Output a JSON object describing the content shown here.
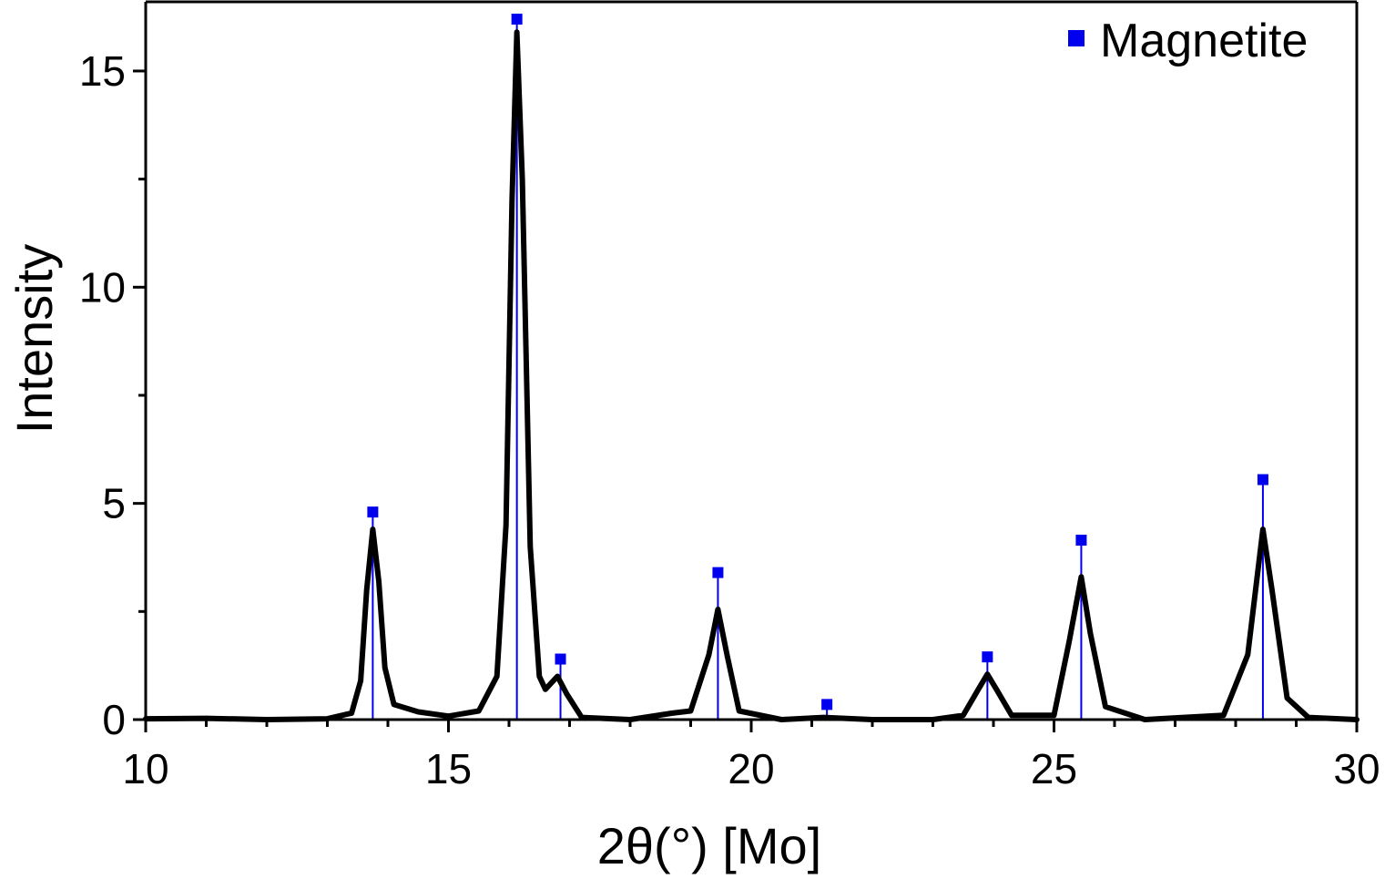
{
  "chart_data": {
    "type": "line",
    "xlabel": "2θ(°) [Mo]",
    "ylabel": "Intensity",
    "xlim": [
      10,
      30
    ],
    "ylim": [
      0,
      16.6
    ],
    "x_ticks": [
      "10",
      "15",
      "20",
      "25",
      "30"
    ],
    "y_ticks": [
      "0",
      "5",
      "10",
      "15"
    ],
    "grid": false,
    "legend_position": "top-right",
    "colors": {
      "pattern": "#000000",
      "reference": "#0000ee"
    },
    "series": [
      {
        "type": "line",
        "values": [
          [
            10.0,
            0.02
          ],
          [
            11.0,
            0.03
          ],
          [
            12.0,
            0.0
          ],
          [
            13.0,
            0.02
          ],
          [
            13.4,
            0.15
          ],
          [
            13.55,
            0.9
          ],
          [
            13.65,
            3.0
          ],
          [
            13.75,
            4.4
          ],
          [
            13.85,
            3.2
          ],
          [
            13.95,
            1.2
          ],
          [
            14.1,
            0.35
          ],
          [
            14.5,
            0.18
          ],
          [
            15.0,
            0.08
          ],
          [
            15.5,
            0.2
          ],
          [
            15.8,
            1.0
          ],
          [
            15.95,
            4.5
          ],
          [
            16.05,
            12.0
          ],
          [
            16.13,
            15.9
          ],
          [
            16.22,
            12.5
          ],
          [
            16.35,
            4.0
          ],
          [
            16.5,
            1.0
          ],
          [
            16.6,
            0.7
          ],
          [
            16.8,
            1.0
          ],
          [
            16.95,
            0.6
          ],
          [
            17.2,
            0.05
          ],
          [
            18.0,
            0.0
          ],
          [
            18.7,
            0.15
          ],
          [
            19.0,
            0.2
          ],
          [
            19.3,
            1.5
          ],
          [
            19.45,
            2.55
          ],
          [
            19.6,
            1.5
          ],
          [
            19.8,
            0.2
          ],
          [
            20.5,
            0.0
          ],
          [
            21.2,
            0.05
          ],
          [
            22.0,
            0.0
          ],
          [
            23.0,
            0.0
          ],
          [
            23.5,
            0.1
          ],
          [
            23.75,
            0.7
          ],
          [
            23.9,
            1.05
          ],
          [
            24.05,
            0.7
          ],
          [
            24.3,
            0.1
          ],
          [
            25.0,
            0.1
          ],
          [
            25.25,
            1.8
          ],
          [
            25.45,
            3.3
          ],
          [
            25.6,
            2.0
          ],
          [
            25.85,
            0.3
          ],
          [
            26.5,
            0.0
          ],
          [
            27.8,
            0.1
          ],
          [
            28.2,
            1.5
          ],
          [
            28.45,
            4.4
          ],
          [
            28.6,
            3.0
          ],
          [
            28.85,
            0.5
          ],
          [
            29.2,
            0.05
          ],
          [
            30.0,
            0.0
          ]
        ]
      },
      {
        "name": "Magnetite",
        "type": "reference",
        "values": [
          [
            13.75,
            4.8
          ],
          [
            16.13,
            16.2
          ],
          [
            16.85,
            1.4
          ],
          [
            19.45,
            3.4
          ],
          [
            21.25,
            0.35
          ],
          [
            23.9,
            1.45
          ],
          [
            25.45,
            4.15
          ],
          [
            28.45,
            5.55
          ]
        ]
      }
    ]
  }
}
